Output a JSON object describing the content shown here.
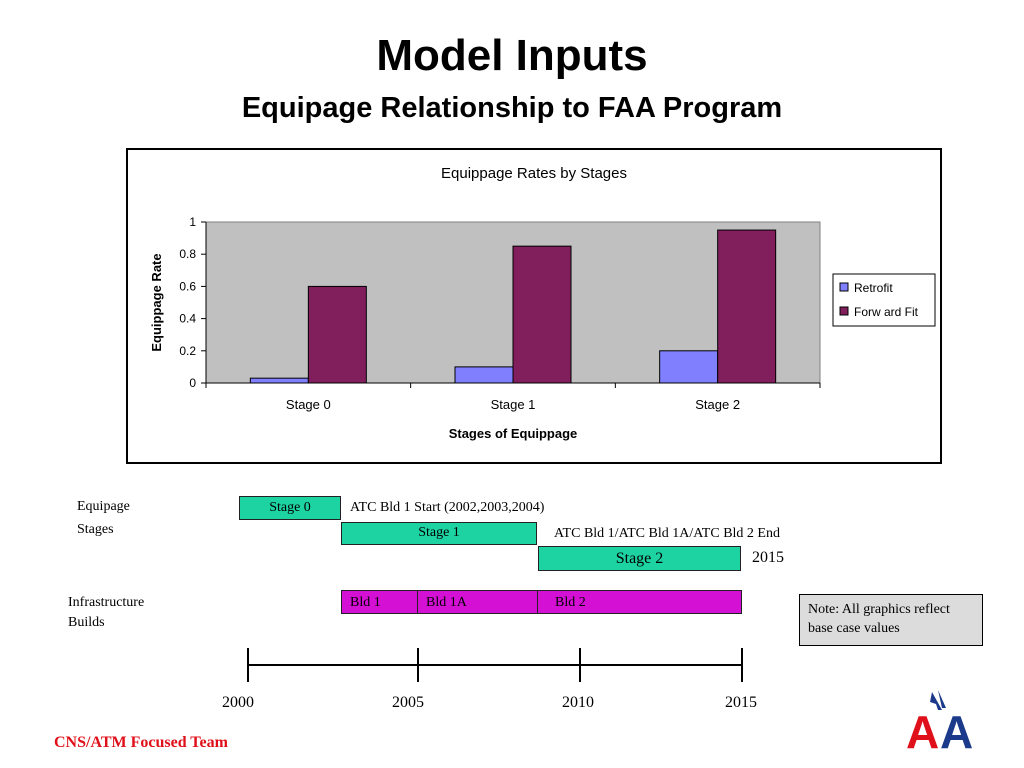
{
  "slide": {
    "title": "Model Inputs",
    "subtitle": "Equipage Relationship to FAA Program",
    "footer": "CNS/ATM Focused Team",
    "note": "Note:  All graphics reflect base case values"
  },
  "chart_data": [
    {
      "type": "bar",
      "title": "Equippage Rates by Stages",
      "xlabel": "Stages of Equippage",
      "ylabel": "Equippage Rate",
      "categories": [
        "Stage 0",
        "Stage 1",
        "Stage 2"
      ],
      "series": [
        {
          "name": "Retrofit",
          "values": [
            0.03,
            0.1,
            0.2
          ],
          "color": "#8080ff"
        },
        {
          "name": "Forw ard Fit",
          "values": [
            0.6,
            0.85,
            0.95
          ],
          "color": "#801f5c"
        }
      ],
      "ylim": [
        0,
        1
      ],
      "yticks": [
        "0",
        "0.2",
        "0.4",
        "0.6",
        "0.8",
        "1"
      ],
      "plot_background": "#c0c0c0",
      "grid": false,
      "legend": "right"
    }
  ],
  "timeline": {
    "equipage_label_1": "Equipage",
    "equipage_label_2": "Stages",
    "infra_label_1": "Infrastructure",
    "infra_label_2": "Builds",
    "stage0": "Stage 0",
    "stage1": "Stage 1",
    "stage2": "Stage 2",
    "annotation_1": "ATC Bld 1 Start (2002,2003,2004)",
    "annotation_2": "ATC Bld 1/ATC Bld 1A/ATC Bld 2 End",
    "annotation_3": "2015",
    "bld1": "Bld 1",
    "bld1a": "Bld 1A",
    "bld2": "Bld 2",
    "years": [
      "2000",
      "2005",
      "2010",
      "2015"
    ],
    "stage_color": "#1ed3a2",
    "build_color": "#d310d3"
  },
  "logo": {
    "icon": "american-airlines-aa-logo",
    "text": "AA"
  }
}
